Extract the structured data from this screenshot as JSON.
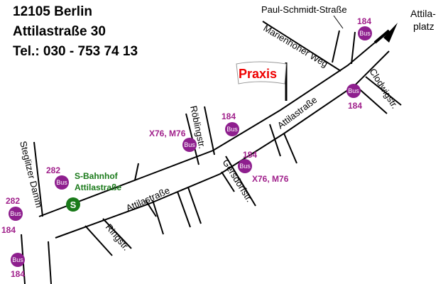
{
  "header": {
    "lines": [
      "12105 Berlin",
      "Attilastraße 30",
      "Tel.: 030 - 753 74 13"
    ]
  },
  "destination": {
    "lines": [
      "Attila-",
      "platz"
    ]
  },
  "marker": {
    "label": "Praxis"
  },
  "station": {
    "icon": "S",
    "lines": [
      "S-Bahnhof",
      "Attilastraße"
    ]
  },
  "streets": [
    "Paul-Schmidt-Straße",
    "Marienhöher Weg",
    "Attilastraße",
    "Attilastraße",
    "Clodwigstr.",
    "Röblingstr.",
    "Gersdorfstr.",
    "Ringstr.",
    "Steglitzer Damm"
  ],
  "bus_stops": [
    {
      "icon": "Bus",
      "lines": [
        "184"
      ]
    },
    {
      "icon": "Bus",
      "lines": [
        "184"
      ]
    },
    {
      "icon": "Bus",
      "lines": [
        "184"
      ]
    },
    {
      "icon": "Bus",
      "lines": [
        "X76, M76"
      ]
    },
    {
      "icon": "Bus",
      "lines": [
        "184",
        "X76, M76"
      ]
    },
    {
      "icon": "Bus",
      "lines": [
        "282"
      ]
    },
    {
      "icon": "Bus",
      "lines": [
        "282",
        "184"
      ]
    },
    {
      "icon": "Bus",
      "lines": [
        "184"
      ]
    }
  ]
}
